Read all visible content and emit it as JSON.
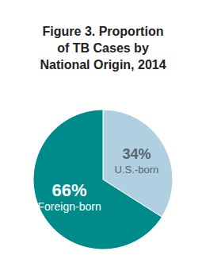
{
  "chart_data": {
    "type": "pie",
    "title": "Figure 3. Proportion\nof TB Cases by\nNational Origin, 2014",
    "categories": [
      "U.S.-born",
      "Foreign-born"
    ],
    "values": [
      34,
      66
    ],
    "value_labels": [
      "34%",
      "66%"
    ],
    "colors": [
      "#b0cfe0",
      "#008b8b"
    ],
    "data_labels": true
  }
}
